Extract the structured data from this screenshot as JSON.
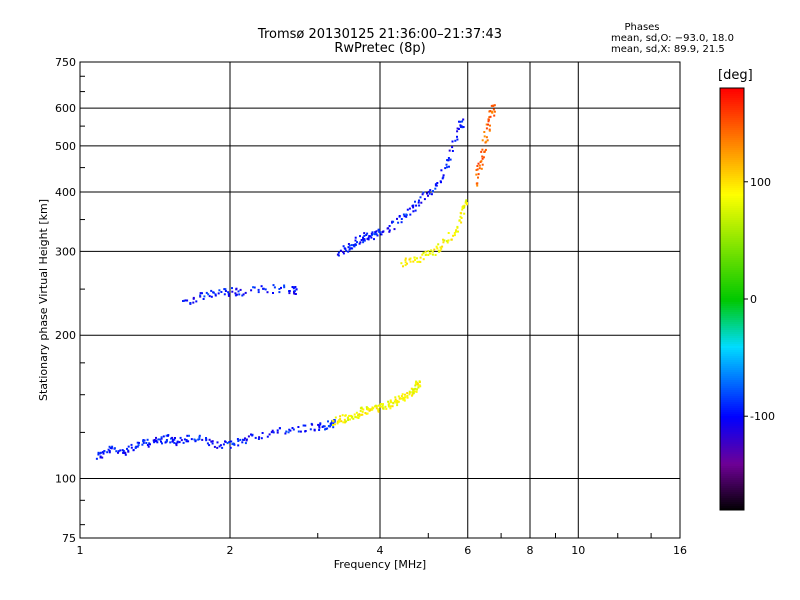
{
  "header": {
    "title_line1": "Tromsø 20130125 21:36:00–21:37:43",
    "title_line2": "RwPretec (8p)"
  },
  "stats": {
    "title": "Phases",
    "o_mode": "mean, sd,O: −93.0, 18.0",
    "x_mode": "mean, sd,X:  89.9, 21.5"
  },
  "colorbar": {
    "label": "[deg]",
    "ticks": [
      100,
      0,
      -100
    ],
    "range": [
      -180,
      180
    ]
  },
  "chart_data": {
    "type": "scatter",
    "title": "Tromsø 20130125 21:36:00–21:37:43",
    "subtitle": "RwPretec (8p)",
    "xlabel": "Frequency [MHz]",
    "ylabel": "Stationary phase Virtual Height [km]",
    "xscale": "log",
    "yscale": "log",
    "xlim": [
      1,
      16
    ],
    "ylim": [
      75,
      750
    ],
    "xticks": [
      1,
      2,
      4,
      6,
      8,
      10,
      16
    ],
    "yticks": [
      75,
      100,
      200,
      300,
      400,
      500,
      600,
      750
    ],
    "grid": true,
    "color_scale": "rainbow phase (deg)",
    "series": [
      {
        "x": [
          1.08,
          1.1,
          1.15,
          1.2,
          1.25,
          1.3,
          1.35,
          1.4,
          1.45,
          1.5,
          1.55,
          1.6,
          1.7,
          1.8,
          1.9,
          2.0,
          2.1,
          2.2,
          2.4,
          2.6,
          2.8,
          3.0,
          3.1,
          3.2
        ],
        "y": [
          112,
          113,
          116,
          114,
          116,
          118,
          119,
          120,
          121,
          122,
          120,
          121,
          122,
          120,
          118,
          118,
          121,
          123,
          125,
          127,
          128,
          129,
          130,
          131
        ],
        "phase": [
          -95,
          -100,
          -90,
          -95,
          -100,
          -90,
          -95,
          -100,
          -95,
          -90,
          -100,
          -95,
          -90,
          -100,
          -95,
          -90,
          -95,
          -100,
          -95,
          -90,
          -95,
          -100,
          -95,
          -90
        ]
      },
      {
        "x": [
          3.2,
          3.3,
          3.4,
          3.5,
          3.6,
          3.7,
          3.8,
          3.9,
          4.0,
          4.1,
          4.2,
          4.3,
          4.4,
          4.5,
          4.6,
          4.7,
          4.75
        ],
        "y": [
          132,
          133,
          134,
          135,
          137,
          139,
          140,
          141,
          142,
          143,
          145,
          146,
          148,
          150,
          152,
          155,
          160
        ],
        "phase": [
          90,
          95,
          85,
          90,
          95,
          88,
          92,
          90,
          95,
          85,
          90,
          92,
          88,
          90,
          95,
          85,
          90
        ]
      },
      {
        "x": [
          1.6,
          1.7,
          1.8,
          1.9,
          2.0,
          2.1,
          2.3,
          2.5,
          2.7
        ],
        "y": [
          236,
          240,
          244,
          246,
          248,
          247,
          250,
          252,
          250
        ],
        "phase": [
          -95,
          -100,
          -90,
          -95,
          -100,
          -95,
          -90,
          -95,
          -100
        ]
      },
      {
        "x": [
          3.3,
          3.4,
          3.5,
          3.6,
          3.7,
          3.8,
          3.9,
          4.0,
          4.2,
          4.4,
          4.6,
          4.8,
          5.0,
          5.2,
          5.4,
          5.6,
          5.8
        ],
        "y": [
          300,
          305,
          310,
          318,
          322,
          325,
          326,
          330,
          340,
          355,
          370,
          385,
          400,
          420,
          450,
          500,
          560
        ],
        "phase": [
          -95,
          -100,
          -90,
          -95,
          -100,
          -95,
          -90,
          -95,
          -100,
          -95,
          -90,
          -100,
          -95,
          -90,
          -95,
          -100,
          -95
        ]
      },
      {
        "x": [
          4.4,
          4.6,
          4.8,
          5.0,
          5.2,
          5.4,
          5.6,
          5.8,
          5.9
        ],
        "y": [
          285,
          288,
          292,
          298,
          305,
          315,
          330,
          350,
          380
        ],
        "phase": [
          90,
          95,
          85,
          90,
          92,
          88,
          90,
          95,
          85
        ]
      },
      {
        "x": [
          6.2,
          6.3,
          6.4,
          6.5,
          6.6,
          6.7
        ],
        "y": [
          420,
          450,
          480,
          520,
          560,
          600
        ],
        "phase": [
          140,
          150,
          145,
          135,
          150,
          140
        ]
      }
    ]
  }
}
